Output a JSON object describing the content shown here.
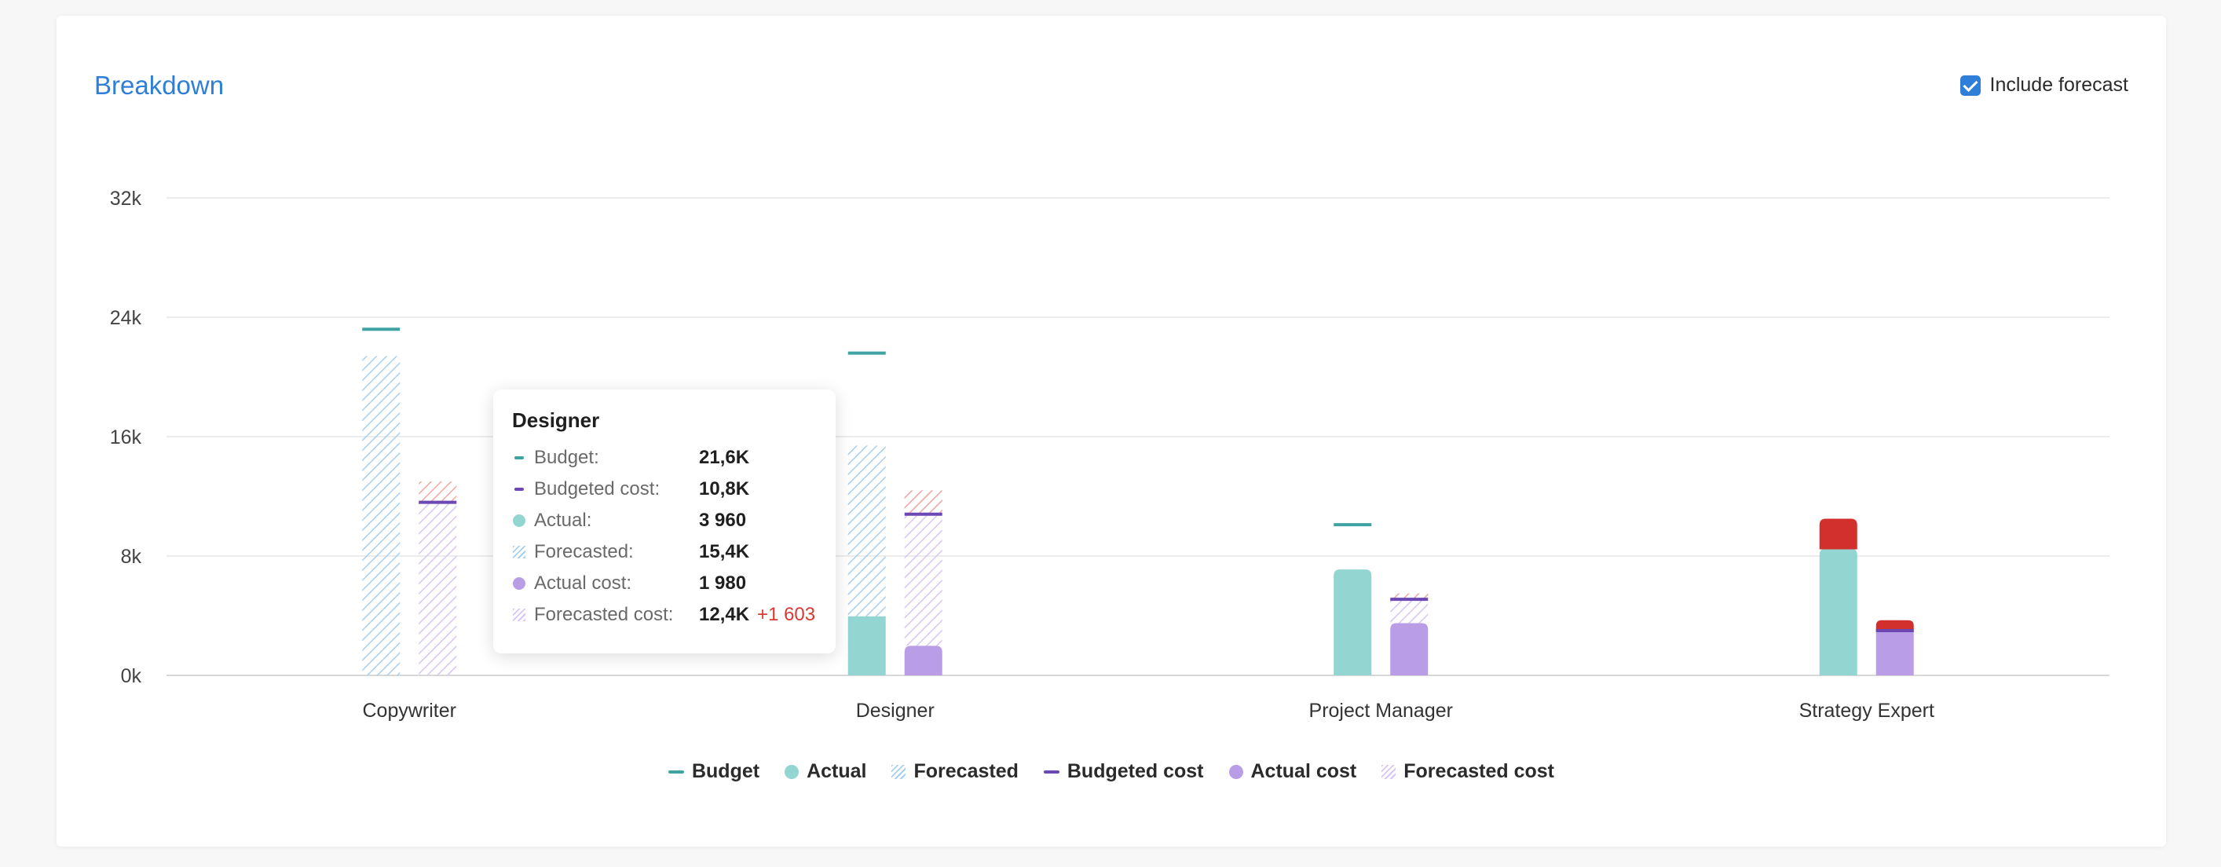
{
  "header": {
    "title": "Breakdown",
    "forecast_toggle_label": "Include forecast",
    "forecast_toggle_checked": true
  },
  "colors": {
    "budget": "#3fa3a3",
    "actual": "#93d5d0",
    "forecasted": "#a9cfee",
    "budgeted_cost": "#6c48b4",
    "actual_cost": "#b99de6",
    "forecasted_cost": "#d7c6f1",
    "overrun": "#d2302c",
    "overrun_hatch": "#f0a9a1",
    "grid": "#ececec",
    "axis": "#d8d8d8"
  },
  "chart_data": {
    "type": "bar",
    "categories": [
      "Copywriter",
      "Designer",
      "Project Manager",
      "Strategy Expert"
    ],
    "ylim": [
      0,
      32000
    ],
    "yticks": [
      0,
      8000,
      16000,
      24000,
      32000
    ],
    "ytick_labels": [
      "0k",
      "8k",
      "16k",
      "24k",
      "32k"
    ],
    "grid": true,
    "legend_position": "bottom-center",
    "series": [
      {
        "name": "Budget",
        "marker": "line",
        "values": [
          23200,
          21600,
          10100,
          0
        ]
      },
      {
        "name": "Actual",
        "marker": "dot",
        "values": [
          0,
          3960,
          7100,
          8500
        ]
      },
      {
        "name": "Forecasted",
        "marker": "hatch",
        "values": [
          21400,
          15400,
          7100,
          8500
        ]
      },
      {
        "name": "Budgeted cost",
        "marker": "line",
        "values": [
          11600,
          10800,
          5100,
          3000
        ]
      },
      {
        "name": "Actual cost",
        "marker": "dot",
        "values": [
          0,
          1980,
          3500,
          3000
        ]
      },
      {
        "name": "Forecasted cost",
        "marker": "hatch",
        "values": [
          11600,
          12400,
          5500,
          3600
        ]
      }
    ],
    "overruns": {
      "bar_total": [
        0,
        0,
        0,
        10500
      ],
      "bar_overrun_kind": [
        "none",
        "none",
        "none",
        "solid"
      ],
      "cost_total": [
        13000,
        12400,
        5500,
        3700
      ],
      "cost_overrun_kind": [
        "hatch",
        "hatch",
        "hatch",
        "solid"
      ]
    }
  },
  "tooltip": {
    "title": "Designer",
    "rows": [
      {
        "label": "Budget:",
        "value": "21,6K",
        "swatch": "line-budget"
      },
      {
        "label": "Budgeted cost:",
        "value": "10,8K",
        "swatch": "line-budgeted-cost"
      },
      {
        "label": "Actual:",
        "value": "3 960",
        "swatch": "dot-actual"
      },
      {
        "label": "Forecasted:",
        "value": "15,4K",
        "swatch": "hatch-forecasted"
      },
      {
        "label": "Actual cost:",
        "value": "1 980",
        "swatch": "dot-actual-cost"
      },
      {
        "label": "Forecasted cost:",
        "value": "12,4K",
        "extra": "+1 603",
        "swatch": "hatch-forecasted-cost"
      }
    ]
  },
  "legend": [
    {
      "label": "Budget",
      "swatch": "line-budget"
    },
    {
      "label": "Actual",
      "swatch": "dot-actual"
    },
    {
      "label": "Forecasted",
      "swatch": "hatch-forecasted"
    },
    {
      "label": "Budgeted cost",
      "swatch": "line-budgeted-cost"
    },
    {
      "label": "Actual cost",
      "swatch": "dot-actual-cost"
    },
    {
      "label": "Forecasted cost",
      "swatch": "hatch-forecasted-cost"
    }
  ]
}
